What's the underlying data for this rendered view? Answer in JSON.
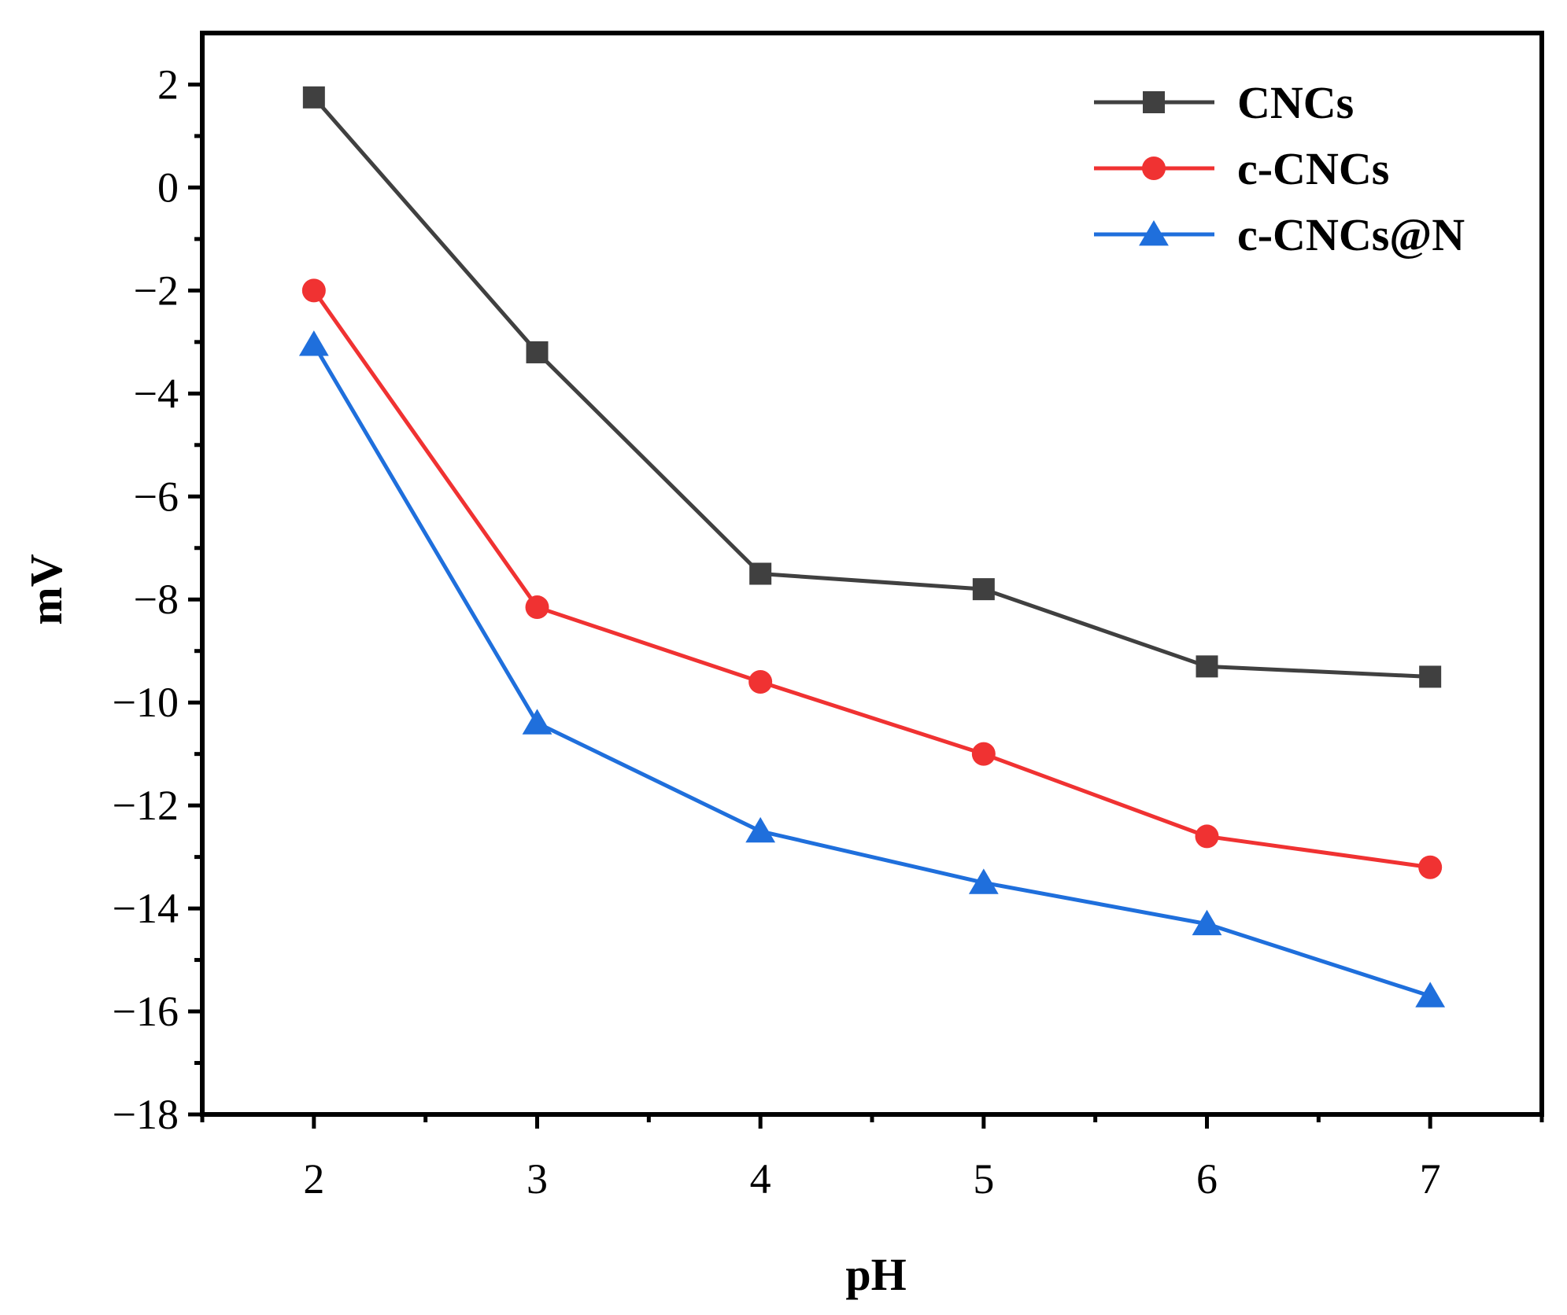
{
  "chart_data": {
    "type": "line",
    "title": "",
    "xlabel": "pH",
    "ylabel": "mV",
    "x": [
      2,
      3,
      4,
      5,
      6,
      7
    ],
    "xlim": [
      1.5,
      7.5
    ],
    "ylim": [
      -18,
      3
    ],
    "x_ticks": [
      "2",
      "3",
      "4",
      "5",
      "6",
      "7"
    ],
    "y_ticks": [
      "2",
      "0",
      "−2",
      "−4",
      "−6",
      "−8",
      "−10",
      "−12",
      "−14",
      "−16",
      "−18"
    ],
    "y_tick_values": [
      2,
      0,
      -2,
      -4,
      -6,
      -8,
      -10,
      -12,
      -14,
      -16,
      -18
    ],
    "grid": false,
    "legend_position": "top-right",
    "series": [
      {
        "name": "CNCs",
        "color": "#404040",
        "marker": "square",
        "values": [
          1.75,
          -3.2,
          -7.5,
          -7.8,
          -9.3,
          -9.5
        ]
      },
      {
        "name": "c-CNCs",
        "color": "#f03232",
        "marker": "circle",
        "values": [
          -2.0,
          -8.15,
          -9.6,
          -11.0,
          -12.6,
          -13.2
        ]
      },
      {
        "name": "c-CNCs@N",
        "color": "#1f6fdc",
        "marker": "triangle",
        "values": [
          -3.05,
          -10.4,
          -12.5,
          -13.5,
          -14.3,
          -15.7
        ]
      }
    ]
  }
}
